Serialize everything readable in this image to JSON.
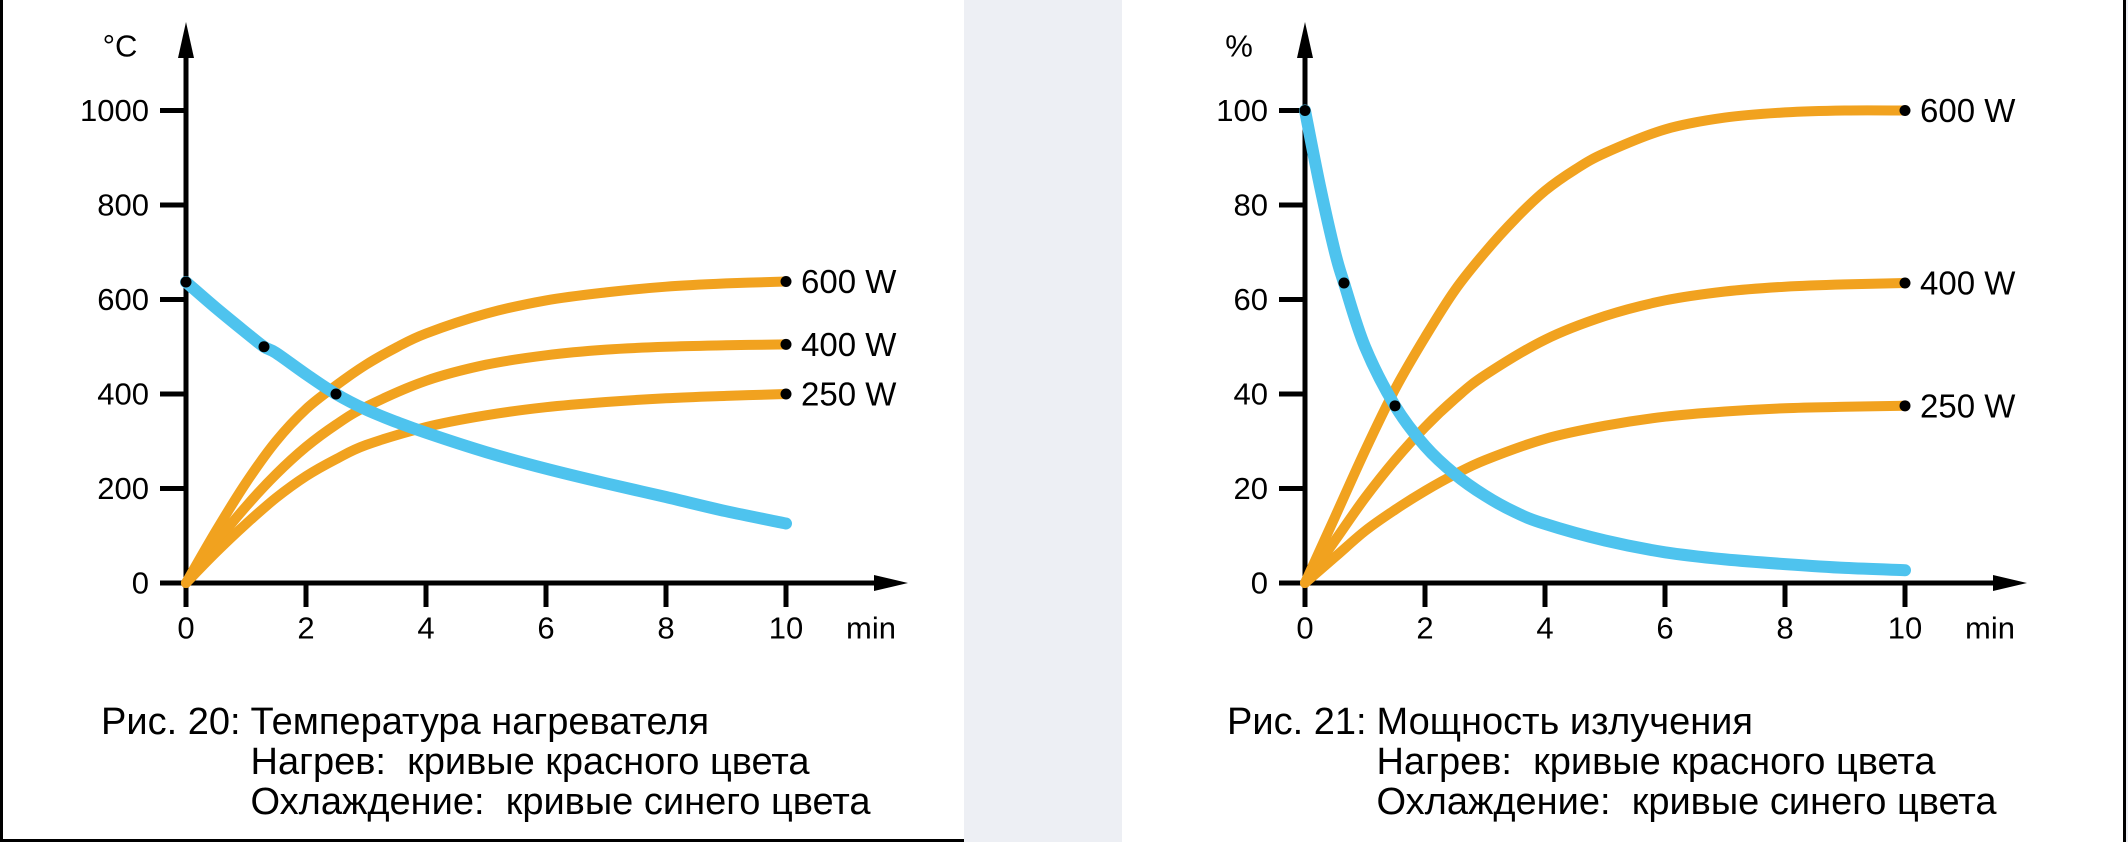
{
  "page": {
    "background": "#edeff4",
    "panel_background": "#ffffff",
    "frame_color": "#000000"
  },
  "palette": {
    "heating_curve": "#F1A21F",
    "cooling_curve": "#4EC3EE",
    "axis": "#000000",
    "marker": "#000000",
    "text": "#000000"
  },
  "chart_data": [
    {
      "id": "fig20",
      "type": "line",
      "title": "Рис. 20: Температура нагревателя",
      "xlabel": "min",
      "ylabel": "°C",
      "xlim": [
        0,
        10
      ],
      "ylim": [
        0,
        1000
      ],
      "x_ticks": [
        0,
        2,
        4,
        6,
        8,
        10
      ],
      "y_ticks": [
        0,
        200,
        400,
        600,
        800,
        1000
      ],
      "grid": false,
      "legend_position": "right-of-curves",
      "series": [
        {
          "name": "heating-600w",
          "label": "600 W",
          "kind": "heating",
          "color": "#F1A21F",
          "points": [
            [
              0,
              0
            ],
            [
              0.5,
              110
            ],
            [
              1,
              212
            ],
            [
              1.5,
              300
            ],
            [
              2,
              368
            ],
            [
              2.5,
              418
            ],
            [
              3,
              462
            ],
            [
              3.5,
              498
            ],
            [
              4,
              528
            ],
            [
              5,
              570
            ],
            [
              6,
              598
            ],
            [
              7,
              615
            ],
            [
              8,
              627
            ],
            [
              9,
              634
            ],
            [
              10,
              638
            ]
          ]
        },
        {
          "name": "heating-400w",
          "label": "400 W",
          "kind": "heating",
          "color": "#F1A21F",
          "points": [
            [
              0,
              0
            ],
            [
              0.5,
              85
            ],
            [
              1,
              162
            ],
            [
              1.5,
              230
            ],
            [
              2,
              288
            ],
            [
              2.5,
              335
            ],
            [
              3,
              373
            ],
            [
              4,
              428
            ],
            [
              5,
              462
            ],
            [
              6,
              482
            ],
            [
              7,
              494
            ],
            [
              8,
              500
            ],
            [
              9,
              503
            ],
            [
              10,
              505
            ]
          ]
        },
        {
          "name": "heating-250w",
          "label": "250 W",
          "kind": "heating",
          "color": "#F1A21F",
          "points": [
            [
              0,
              0
            ],
            [
              0.5,
              65
            ],
            [
              1,
              125
            ],
            [
              1.5,
              180
            ],
            [
              2,
              226
            ],
            [
              2.5,
              262
            ],
            [
              3,
              292
            ],
            [
              4,
              330
            ],
            [
              5,
              355
            ],
            [
              6,
              372
            ],
            [
              7,
              383
            ],
            [
              8,
              391
            ],
            [
              9,
              396
            ],
            [
              10,
              400
            ]
          ]
        },
        {
          "name": "cooling",
          "label": "",
          "kind": "cooling",
          "color": "#4EC3EE",
          "points": [
            [
              0,
              637
            ],
            [
              0.5,
              582
            ],
            [
              1,
              530
            ],
            [
              1.3,
              500
            ],
            [
              1.5,
              487
            ],
            [
              2,
              442
            ],
            [
              2.5,
              400
            ],
            [
              3,
              367
            ],
            [
              3.5,
              341
            ],
            [
              4,
              318
            ],
            [
              5,
              277
            ],
            [
              6,
              242
            ],
            [
              7,
              211
            ],
            [
              8,
              182
            ],
            [
              9,
              152
            ],
            [
              10,
              126
            ]
          ]
        }
      ],
      "marked_points": [
        [
          0,
          637
        ],
        [
          1.3,
          500
        ],
        [
          2.5,
          400
        ],
        [
          10,
          638
        ],
        [
          10,
          505
        ],
        [
          10,
          400
        ]
      ],
      "caption": {
        "prefix": "Рис. 20:",
        "lines": [
          "Температура нагревателя",
          "Нагрев:  кривые красного цвета",
          "Охлаждение:  кривые синего цвета"
        ]
      }
    },
    {
      "id": "fig21",
      "type": "line",
      "title": "Рис. 21: Мощность излучения",
      "xlabel": "min",
      "ylabel": "%",
      "xlim": [
        0,
        10
      ],
      "ylim": [
        0,
        100
      ],
      "x_ticks": [
        0,
        2,
        4,
        6,
        8,
        10
      ],
      "y_ticks": [
        0,
        20,
        40,
        60,
        80,
        100
      ],
      "grid": false,
      "legend_position": "right-of-curves",
      "series": [
        {
          "name": "heating-600w",
          "label": "600 W",
          "kind": "heating",
          "color": "#F1A21F",
          "points": [
            [
              0,
              0
            ],
            [
              0.5,
              14
            ],
            [
              1,
              28
            ],
            [
              1.5,
              41
            ],
            [
              2,
              52
            ],
            [
              2.5,
              62
            ],
            [
              3,
              70
            ],
            [
              3.5,
              77
            ],
            [
              4,
              83
            ],
            [
              4.5,
              87.5
            ],
            [
              5,
              91
            ],
            [
              6,
              96
            ],
            [
              7,
              98.5
            ],
            [
              8,
              99.6
            ],
            [
              9,
              100
            ],
            [
              10,
              100
            ]
          ]
        },
        {
          "name": "heating-400w",
          "label": "400 W",
          "kind": "heating",
          "color": "#F1A21F",
          "points": [
            [
              0,
              0
            ],
            [
              0.5,
              9
            ],
            [
              1,
              18
            ],
            [
              1.5,
              26
            ],
            [
              2,
              33
            ],
            [
              2.5,
              39
            ],
            [
              3,
              44
            ],
            [
              4,
              51.5
            ],
            [
              5,
              56.5
            ],
            [
              6,
              59.8
            ],
            [
              7,
              61.7
            ],
            [
              8,
              62.7
            ],
            [
              9,
              63.2
            ],
            [
              10,
              63.5
            ]
          ]
        },
        {
          "name": "heating-250w",
          "label": "250 W",
          "kind": "heating",
          "color": "#F1A21F",
          "points": [
            [
              0,
              0
            ],
            [
              0.5,
              5.5
            ],
            [
              1,
              11
            ],
            [
              1.5,
              15.5
            ],
            [
              2,
              19.5
            ],
            [
              2.5,
              23
            ],
            [
              3,
              26
            ],
            [
              4,
              30.5
            ],
            [
              5,
              33.3
            ],
            [
              6,
              35.2
            ],
            [
              7,
              36.3
            ],
            [
              8,
              37
            ],
            [
              9,
              37.3
            ],
            [
              10,
              37.5
            ]
          ]
        },
        {
          "name": "cooling",
          "label": "",
          "kind": "cooling",
          "color": "#4EC3EE",
          "points": [
            [
              0,
              100
            ],
            [
              0.25,
              84
            ],
            [
              0.5,
              70
            ],
            [
              0.65,
              63.5
            ],
            [
              1,
              50
            ],
            [
              1.5,
              37.5
            ],
            [
              2,
              29
            ],
            [
              2.5,
              23
            ],
            [
              3,
              18.5
            ],
            [
              3.5,
              15
            ],
            [
              4,
              12.5
            ],
            [
              5,
              9
            ],
            [
              6,
              6.5
            ],
            [
              7,
              5
            ],
            [
              8,
              4
            ],
            [
              9,
              3.2
            ],
            [
              10,
              2.7
            ]
          ]
        }
      ],
      "marked_points": [
        [
          0,
          100
        ],
        [
          0.65,
          63.5
        ],
        [
          1.5,
          37.5
        ],
        [
          10,
          100
        ],
        [
          10,
          63.5
        ],
        [
          10,
          37.5
        ]
      ],
      "caption": {
        "prefix": "Рис. 21:",
        "lines": [
          "Мощность излучения",
          "Нагрев:  кривые красного цвета",
          "Охлаждение:  кривые синего цвета"
        ]
      }
    }
  ]
}
